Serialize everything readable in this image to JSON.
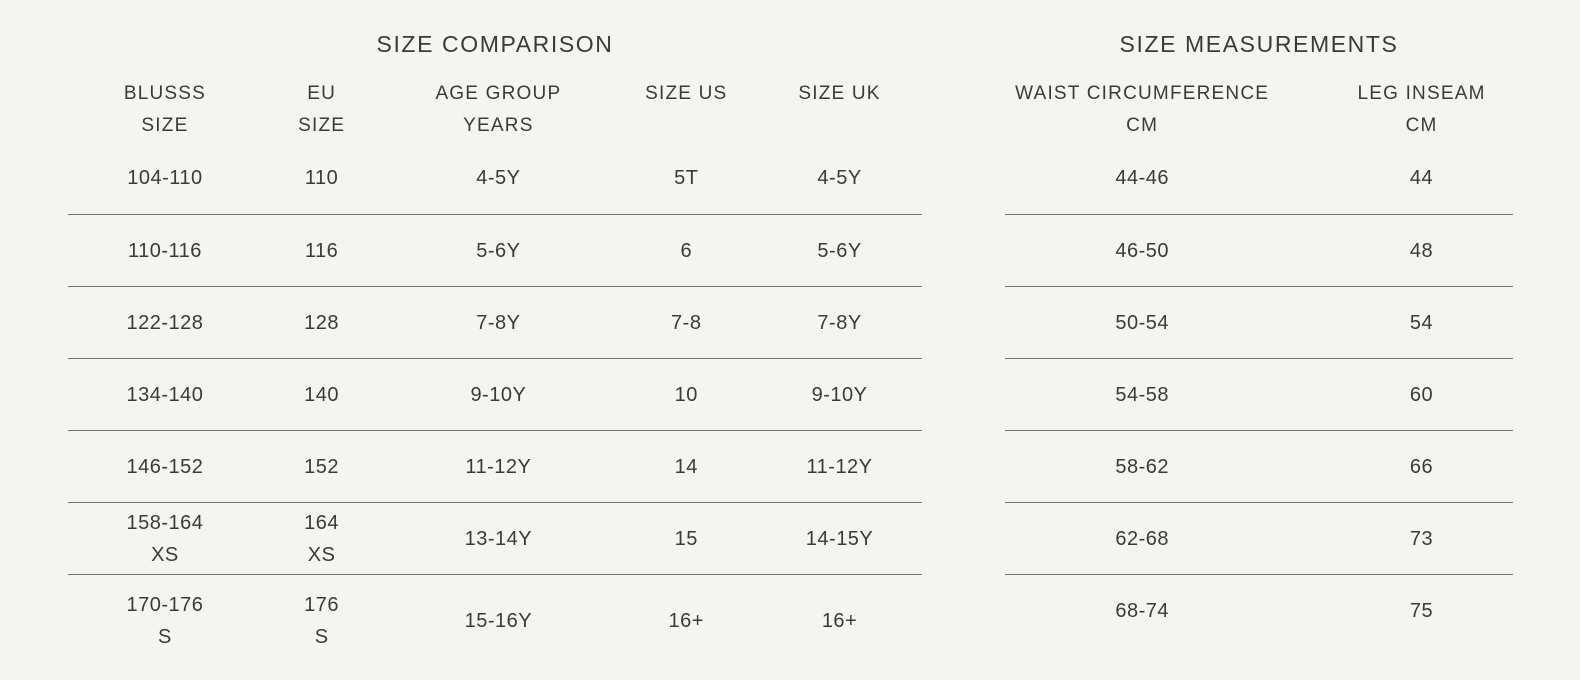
{
  "page": {
    "background_color": "#f4f4f1",
    "text_color": "#3c3b32",
    "line_color": "#72716a"
  },
  "comparison_table": {
    "title": "SIZE COMPARISON",
    "columns": [
      "BLUSSS\nSIZE",
      "EU\nSIZE",
      "AGE GROUP\nYEARS",
      "SIZE US",
      "SIZE UK"
    ],
    "rows": [
      [
        "104-110",
        "110",
        "4-5Y",
        "5T",
        "4-5Y"
      ],
      [
        "110-116",
        "116",
        "5-6Y",
        "6",
        "5-6Y"
      ],
      [
        "122-128",
        "128",
        "7-8Y",
        "7-8",
        "7-8Y"
      ],
      [
        "134-140",
        "140",
        "9-10Y",
        "10",
        "9-10Y"
      ],
      [
        "146-152",
        "152",
        "11-12Y",
        "14",
        "11-12Y"
      ],
      [
        "158-164\nXS",
        "164\nXS",
        "13-14Y",
        "15",
        "14-15Y"
      ],
      [
        "170-176\nS",
        "176\nS",
        "15-16Y",
        "16+",
        "16+"
      ]
    ]
  },
  "measurements_table": {
    "title": "SIZE MEASUREMENTS",
    "columns": [
      "WAIST CIRCUMFERENCE\nCM",
      "LEG INSEAM\nCM"
    ],
    "rows": [
      [
        "44-46",
        "44"
      ],
      [
        "46-50",
        "48"
      ],
      [
        "50-54",
        "54"
      ],
      [
        "54-58",
        "60"
      ],
      [
        "58-62",
        "66"
      ],
      [
        "62-68",
        "73"
      ],
      [
        "68-74",
        "75"
      ]
    ]
  }
}
